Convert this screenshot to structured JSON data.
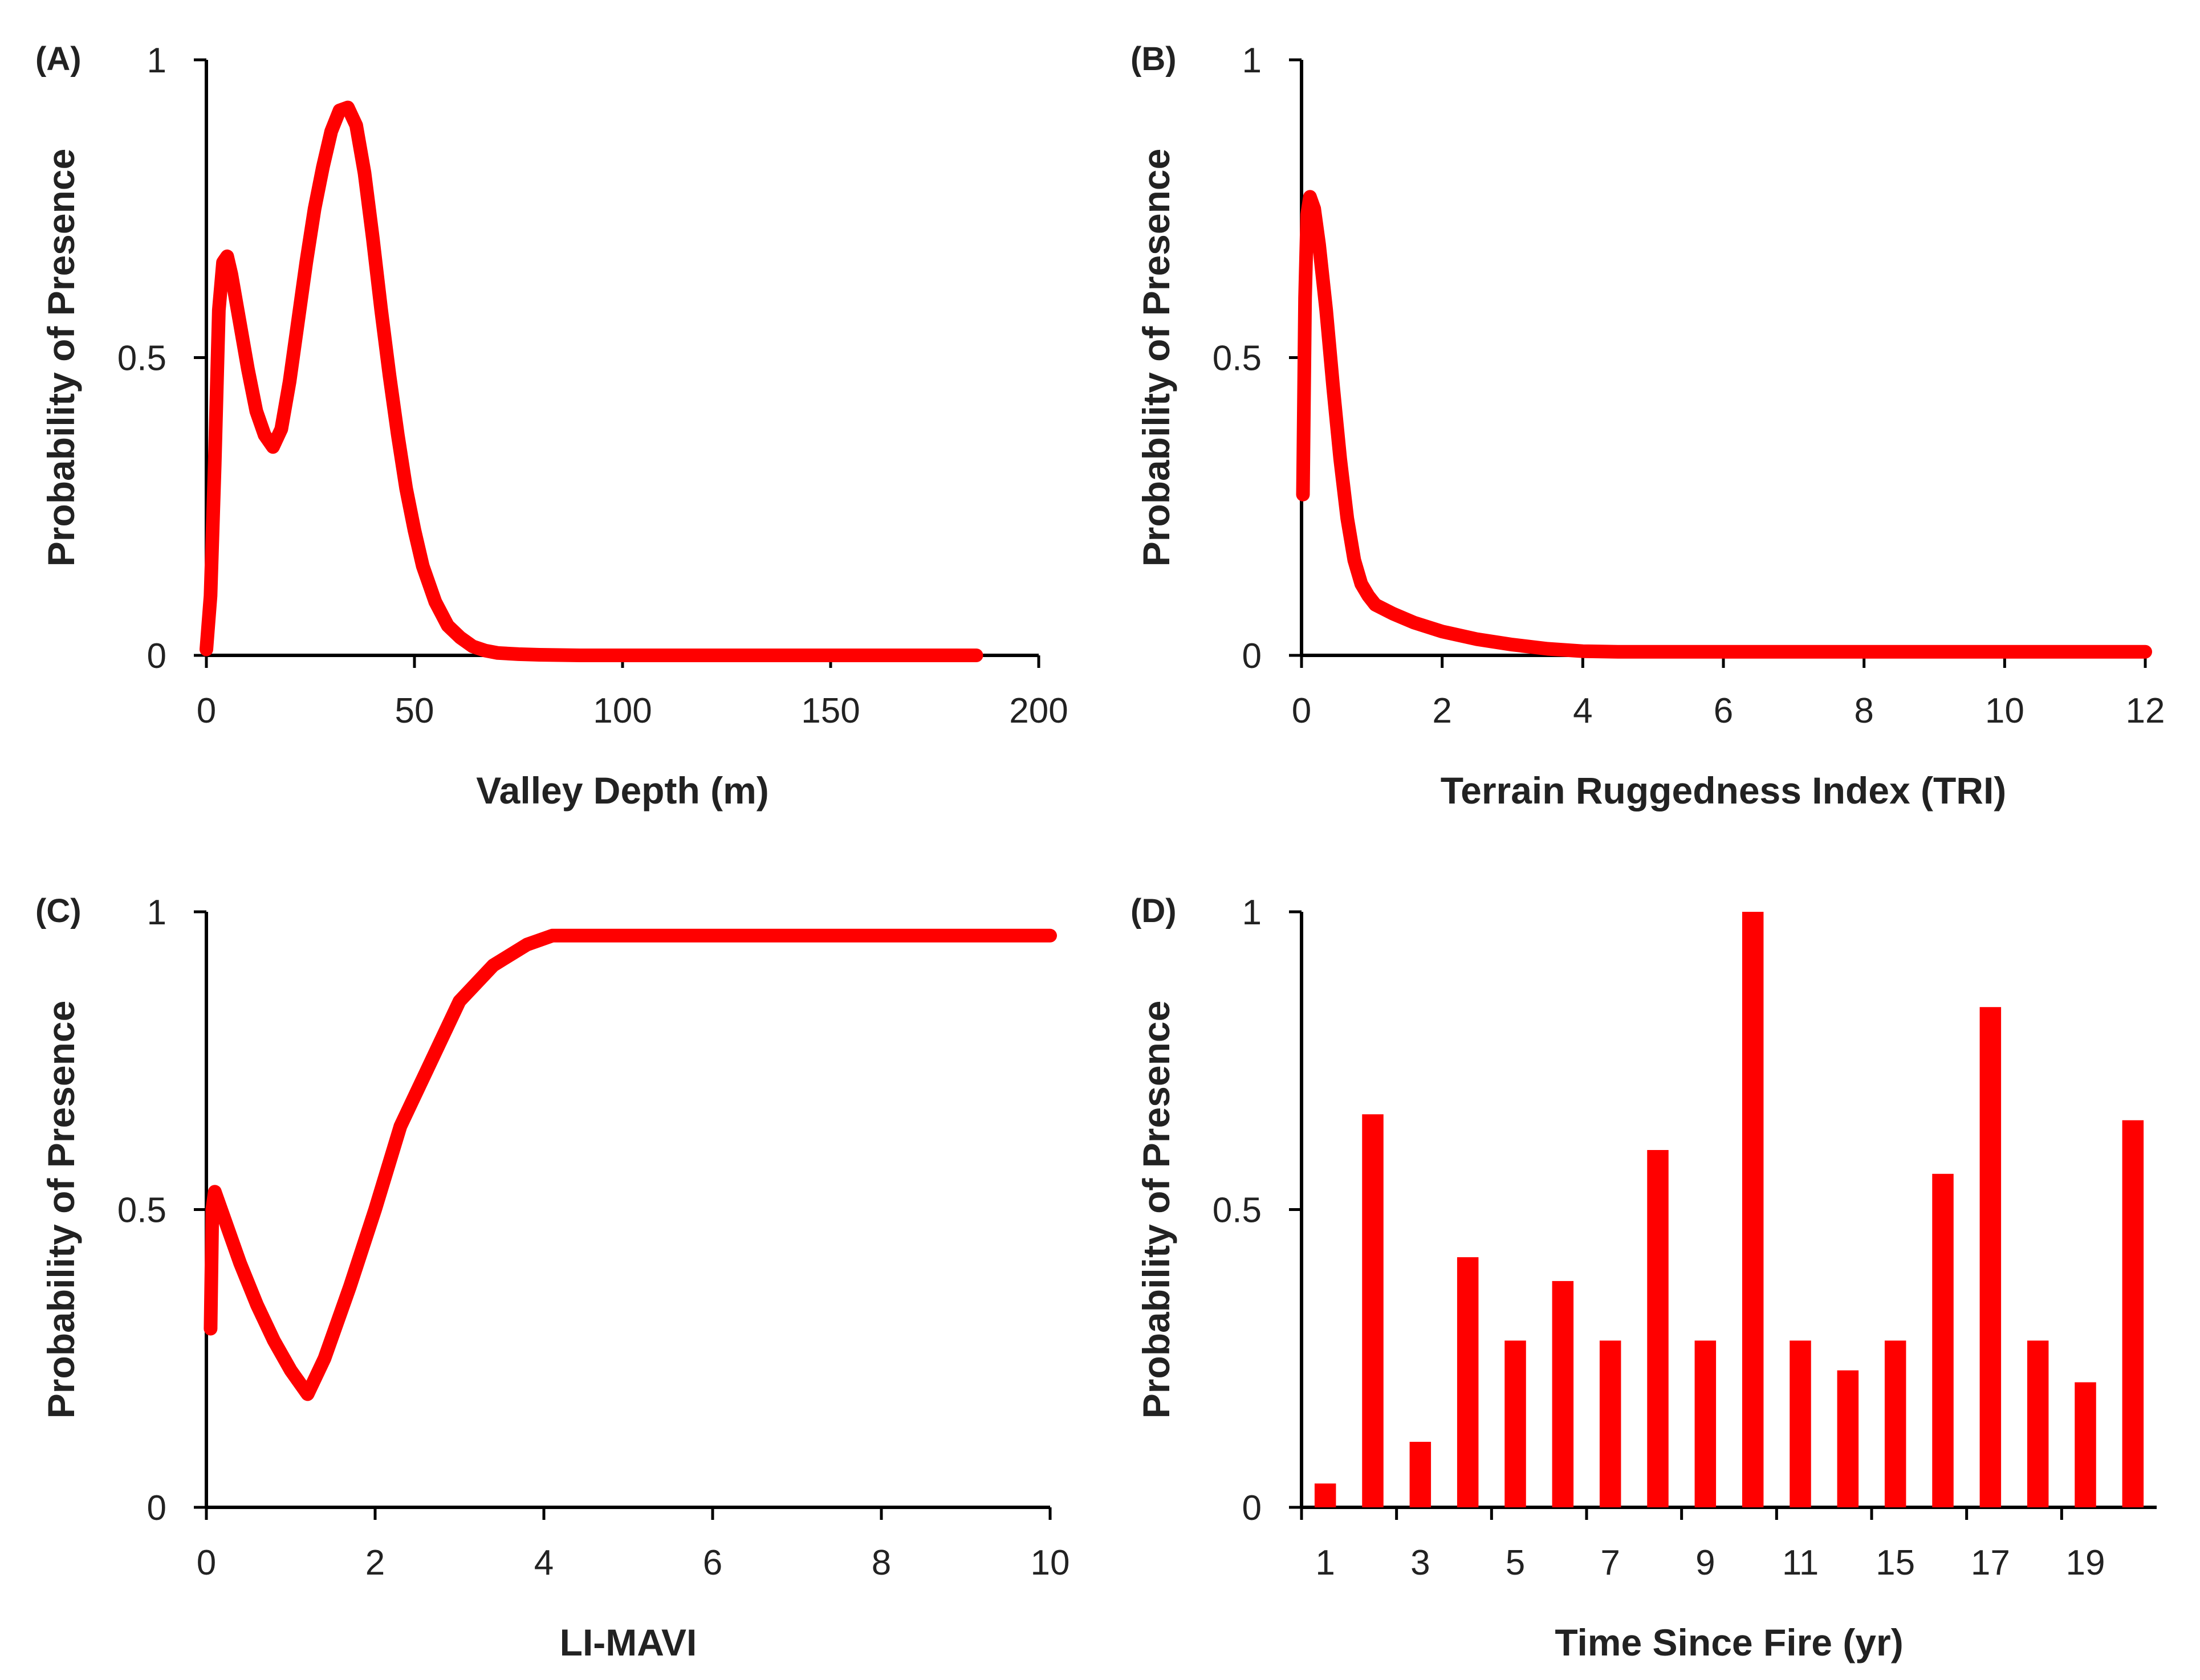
{
  "figure": {
    "series_color": "#ff0000",
    "axis_color": "#000000",
    "text_color": "#222222"
  },
  "chart_data": [
    {
      "id": "A",
      "panel_label": "(A)",
      "type": "line",
      "title": "",
      "xlabel": "Valley Depth (m)",
      "ylabel": "Probability of Presence",
      "xlim": [
        0,
        200
      ],
      "ylim": [
        0,
        1
      ],
      "xticks": [
        0,
        50,
        100,
        150,
        200
      ],
      "xtick_labels": [
        "0",
        "50",
        "100",
        "150",
        "200"
      ],
      "yticks": [
        0,
        0.5,
        1
      ],
      "ytick_labels": [
        "0",
        "0.5",
        "1"
      ],
      "grid": false,
      "legend": "none",
      "series": [
        {
          "name": "response",
          "x": [
            0,
            1,
            2,
            3,
            4,
            5,
            6,
            8,
            10,
            12,
            14,
            16,
            18,
            20,
            22,
            24,
            26,
            28,
            30,
            32,
            34,
            36,
            38,
            40,
            42,
            44,
            46,
            48,
            50,
            52,
            55,
            58,
            61,
            64,
            67,
            70,
            75,
            80,
            90,
            100,
            120,
            140,
            160,
            185
          ],
          "y": [
            0.01,
            0.1,
            0.32,
            0.58,
            0.66,
            0.67,
            0.64,
            0.56,
            0.48,
            0.41,
            0.37,
            0.35,
            0.38,
            0.46,
            0.56,
            0.66,
            0.75,
            0.82,
            0.88,
            0.915,
            0.92,
            0.89,
            0.81,
            0.7,
            0.58,
            0.47,
            0.37,
            0.28,
            0.21,
            0.15,
            0.09,
            0.05,
            0.03,
            0.015,
            0.008,
            0.004,
            0.002,
            0.001,
            0,
            0,
            0,
            0,
            0,
            0
          ]
        }
      ]
    },
    {
      "id": "B",
      "panel_label": "(B)",
      "type": "line",
      "title": "",
      "xlabel": "Terrain Ruggedness Index (TRI)",
      "ylabel": "Probability of Presence",
      "xlim": [
        0,
        12
      ],
      "ylim": [
        0,
        1
      ],
      "xticks": [
        0,
        2,
        4,
        6,
        8,
        10,
        12
      ],
      "xtick_labels": [
        "0",
        "2",
        "4",
        "6",
        "8",
        "10",
        "12"
      ],
      "yticks": [
        0,
        0.5,
        1
      ],
      "ytick_labels": [
        "0",
        "0.5",
        "1"
      ],
      "grid": false,
      "legend": "none",
      "series": [
        {
          "name": "response",
          "x": [
            0.02,
            0.05,
            0.08,
            0.12,
            0.18,
            0.25,
            0.35,
            0.45,
            0.55,
            0.65,
            0.75,
            0.85,
            0.95,
            1.05,
            1.3,
            1.6,
            2.0,
            2.5,
            3.0,
            3.5,
            4.0,
            4.5,
            5.0,
            6.0,
            8.0,
            10.0,
            12.0
          ],
          "y": [
            0.27,
            0.6,
            0.74,
            0.77,
            0.75,
            0.69,
            0.58,
            0.45,
            0.33,
            0.23,
            0.16,
            0.12,
            0.1,
            0.085,
            0.07,
            0.055,
            0.04,
            0.027,
            0.018,
            0.011,
            0.007,
            0.006,
            0.006,
            0.006,
            0.006,
            0.006,
            0.006
          ]
        }
      ]
    },
    {
      "id": "C",
      "panel_label": "(C)",
      "type": "line",
      "title": "",
      "xlabel": "LI-MAVI",
      "ylabel": "Probability of Presence",
      "xlim": [
        0,
        10
      ],
      "ylim": [
        0,
        1
      ],
      "xticks": [
        0,
        2,
        4,
        6,
        8,
        10
      ],
      "xtick_labels": [
        "0",
        "2",
        "4",
        "6",
        "8",
        "10"
      ],
      "yticks": [
        0,
        0.5,
        1
      ],
      "ytick_labels": [
        "0",
        "0.5",
        "1"
      ],
      "grid": false,
      "legend": "none",
      "series": [
        {
          "name": "response",
          "x": [
            0.05,
            0.07,
            0.1,
            0.2,
            0.4,
            0.6,
            0.8,
            1.0,
            1.2,
            1.4,
            1.7,
            2.0,
            2.3,
            2.6,
            3.0,
            3.4,
            3.8,
            4.1,
            5,
            6,
            7,
            8,
            9,
            10
          ],
          "y": [
            0.3,
            0.5,
            0.53,
            0.49,
            0.41,
            0.34,
            0.28,
            0.23,
            0.19,
            0.25,
            0.37,
            0.5,
            0.64,
            0.73,
            0.85,
            0.91,
            0.945,
            0.96,
            0.96,
            0.96,
            0.96,
            0.96,
            0.96,
            0.96
          ]
        }
      ]
    },
    {
      "id": "D",
      "panel_label": "(D)",
      "type": "bar",
      "title": "",
      "xlabel": "Time Since Fire (yr)",
      "ylabel": "Probability of Presence",
      "ylim": [
        0,
        1
      ],
      "yticks": [
        0,
        0.5,
        1
      ],
      "ytick_labels": [
        "0",
        "0.5",
        "1"
      ],
      "categories": [
        "1",
        "2",
        "3",
        "4",
        "5",
        "6",
        "7",
        "8",
        "9",
        "10",
        "11",
        "13",
        "15",
        "16",
        "17",
        "18",
        "19",
        "20"
      ],
      "xtick_labels": [
        "1",
        "3",
        "5",
        "7",
        "9",
        "11",
        "15",
        "17",
        "19"
      ],
      "xtick_category_index": [
        0,
        2,
        4,
        6,
        8,
        10,
        12,
        14,
        16
      ],
      "grid": false,
      "legend": "none",
      "series": [
        {
          "name": "response",
          "values": [
            0.04,
            0.66,
            0.11,
            0.42,
            0.28,
            0.38,
            0.28,
            0.6,
            0.28,
            1.0,
            0.28,
            0.23,
            0.28,
            0.56,
            0.84,
            0.28,
            0.21,
            0.65
          ]
        }
      ]
    }
  ]
}
